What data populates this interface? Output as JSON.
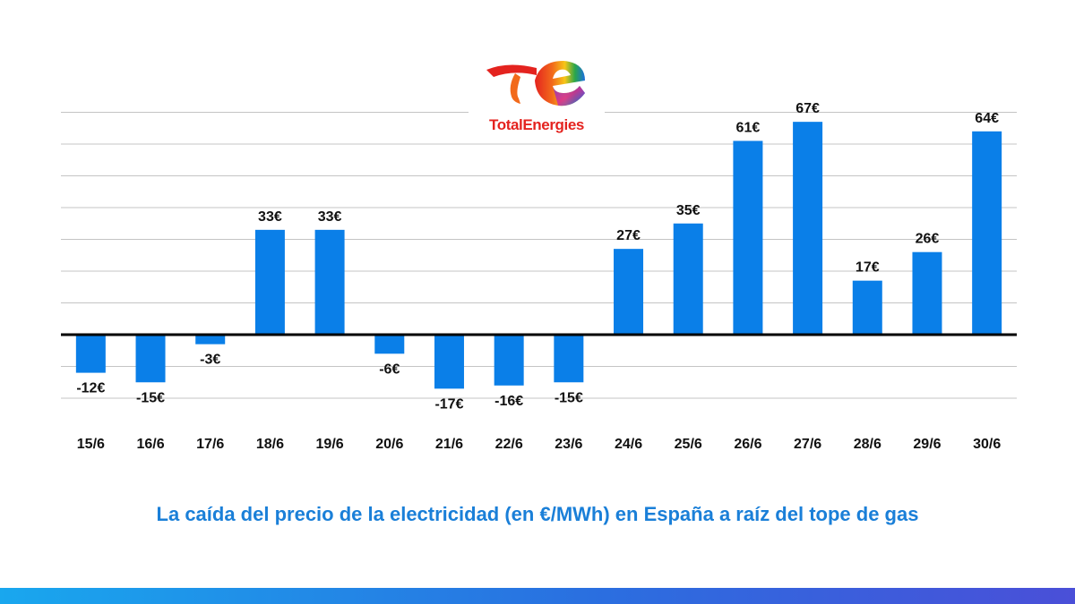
{
  "brand": {
    "name": "TotalEnergies"
  },
  "colors": {
    "bar": "#0a7fe8",
    "text": "#111111",
    "caption": "#1a7fd8",
    "brand_red": "#e4231f"
  },
  "caption": "La caída del precio de la electricidad (en €/MWh) en España a raíz del tope de gas",
  "chart_data": {
    "type": "bar",
    "title": "",
    "xlabel": "",
    "ylabel": "",
    "categories": [
      "15/6",
      "16/6",
      "17/6",
      "18/6",
      "19/6",
      "20/6",
      "21/6",
      "22/6",
      "23/6",
      "24/6",
      "25/6",
      "26/6",
      "27/6",
      "28/6",
      "29/6",
      "30/6"
    ],
    "values": [
      -12,
      -15,
      -3,
      33,
      33,
      -6,
      -17,
      -16,
      -15,
      27,
      35,
      61,
      67,
      17,
      26,
      64
    ],
    "data_labels": [
      "-12€",
      "-15€",
      "-3€",
      "33€",
      "33€",
      "-6€",
      "-17€",
      "-16€",
      "-15€",
      "27€",
      "35€",
      "61€",
      "67€",
      "17€",
      "26€",
      "64€"
    ],
    "ylim": [
      -20,
      60
    ],
    "grid": true,
    "legend": "none"
  }
}
